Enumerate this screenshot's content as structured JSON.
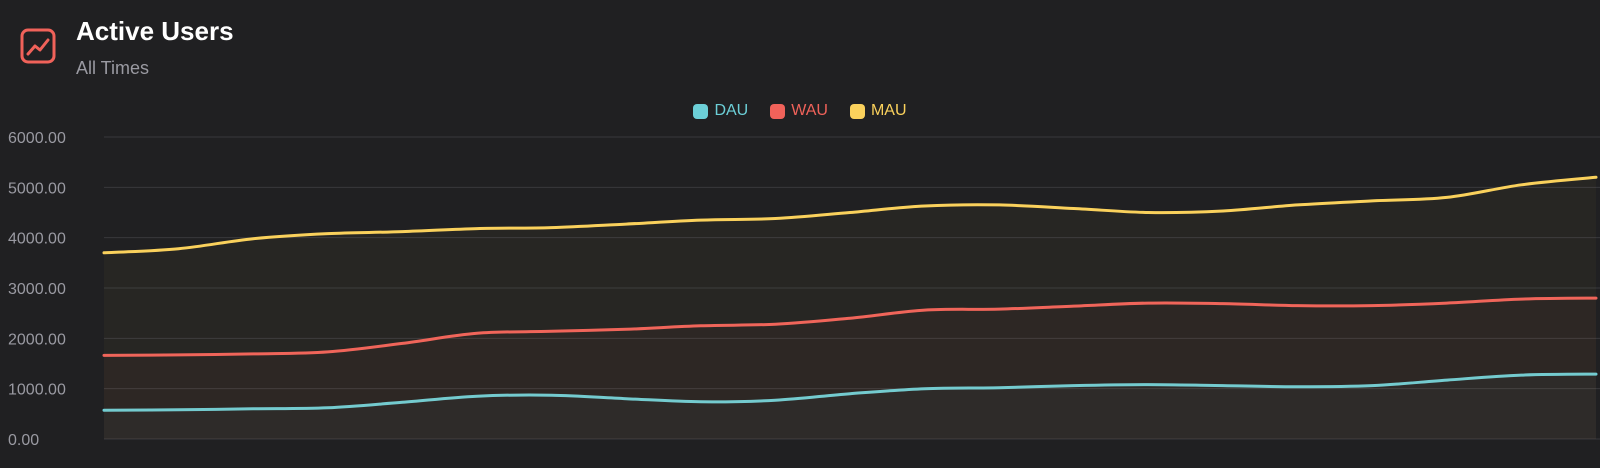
{
  "header": {
    "icon": "line-chart-icon",
    "title": "Active Users",
    "subtitle": "All Times"
  },
  "colors": {
    "background": "#202022",
    "grid": "#38383c",
    "tick_text": "#9a9aa2",
    "accent": "#f0625a"
  },
  "chart_data": {
    "type": "line",
    "title": "Active Users",
    "subtitle": "All Times",
    "xlabel": "",
    "ylabel": "",
    "ylim": [
      0,
      6000
    ],
    "y_ticks": [
      "0.00",
      "1000.00",
      "2000.00",
      "3000.00",
      "4000.00",
      "5000.00",
      "6000.00"
    ],
    "grid": true,
    "legend_position": "top-center",
    "smooth": true,
    "series": [
      {
        "name": "DAU",
        "color": "#6ccfd7",
        "values": [
          570,
          580,
          600,
          620,
          730,
          850,
          870,
          800,
          740,
          770,
          900,
          1000,
          1020,
          1060,
          1080,
          1060,
          1040,
          1060,
          1170,
          1270,
          1290
        ]
      },
      {
        "name": "WAU",
        "color": "#f0625a",
        "values": [
          1660,
          1670,
          1690,
          1730,
          1900,
          2100,
          2140,
          2180,
          2250,
          2280,
          2400,
          2560,
          2580,
          2640,
          2700,
          2690,
          2650,
          2650,
          2700,
          2780,
          2800
        ]
      },
      {
        "name": "MAU",
        "color": "#fad15c",
        "values": [
          3700,
          3780,
          3980,
          4080,
          4120,
          4180,
          4200,
          4270,
          4350,
          4380,
          4500,
          4630,
          4650,
          4580,
          4500,
          4530,
          4650,
          4730,
          4800,
          5050,
          5200
        ]
      }
    ]
  }
}
